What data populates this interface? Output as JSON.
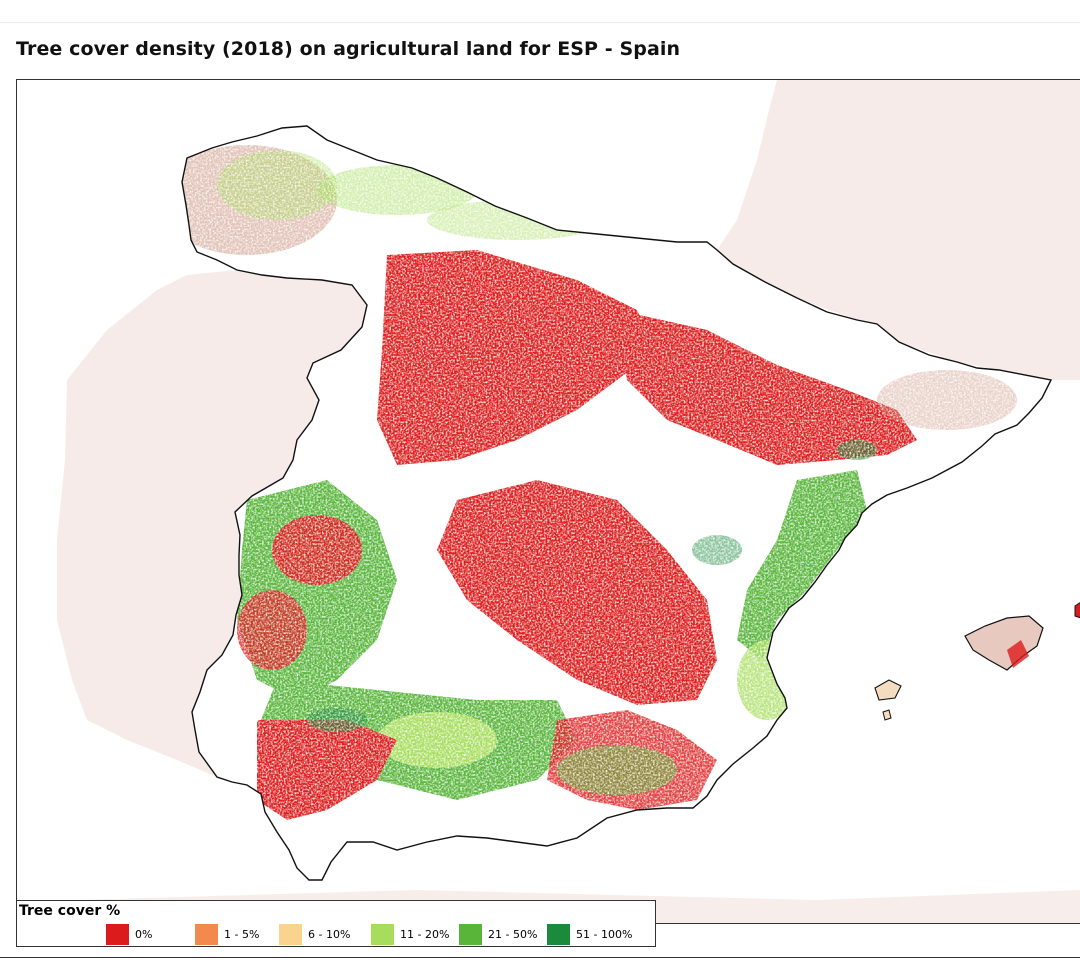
{
  "title": "Tree cover density (2018) on agricultural land for ESP - Spain",
  "legend": {
    "title": "Tree cover %",
    "items": [
      {
        "label": "0%",
        "color": "#dc1c1c"
      },
      {
        "label": "1 - 5%",
        "color": "#f28a4e"
      },
      {
        "label": "6 - 10%",
        "color": "#fad48e"
      },
      {
        "label": "11 - 20%",
        "color": "#a6dd5c"
      },
      {
        "label": "21 - 50%",
        "color": "#58b53a"
      },
      {
        "label": "51 - 100%",
        "color": "#1c8a3c"
      }
    ]
  },
  "colors": {
    "background_land": "#f6e8e6",
    "sea": "#ffffff",
    "border": "#111111"
  }
}
